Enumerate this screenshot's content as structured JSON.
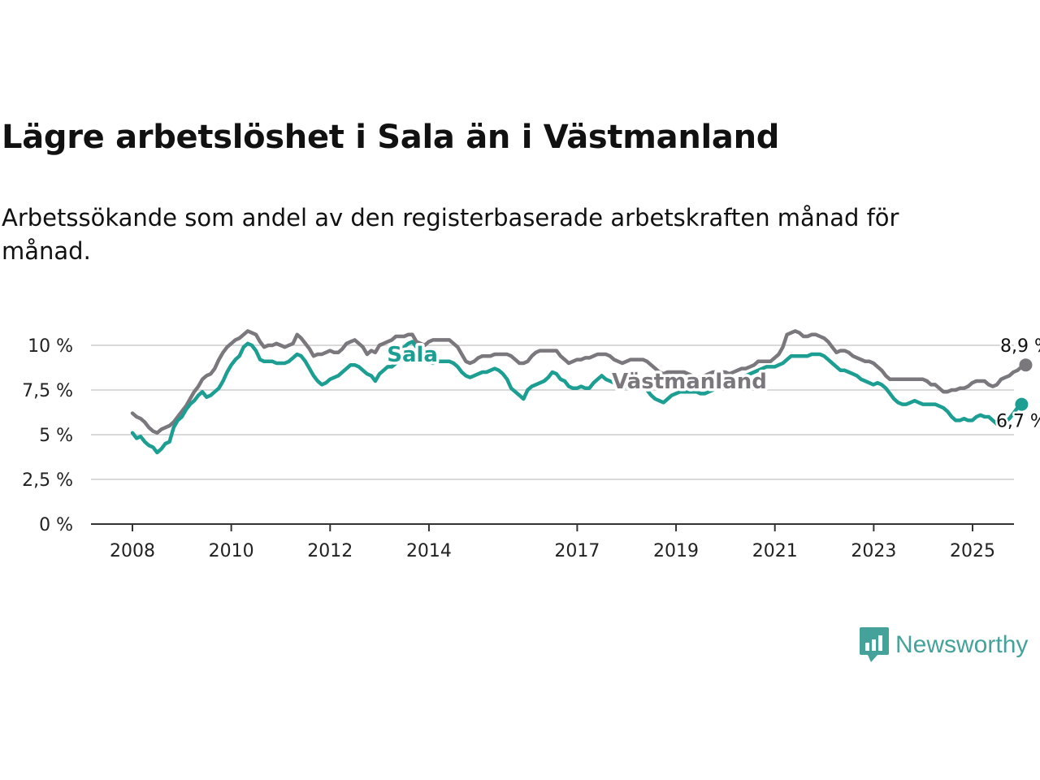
{
  "title": "Lägre arbetslöshet i Sala än i Västmanland",
  "subtitle": "Arbetssökande som andel av den registerbaserade arbetskraften månad för månad.",
  "brand": {
    "name": "Newsworthy",
    "color": "#45a29a"
  },
  "chart_data": {
    "type": "line",
    "x_start": 2008.0,
    "x_step": 0.0833,
    "xlim": [
      2008.0,
      2025.0
    ],
    "ylim": [
      0,
      10
    ],
    "x_ticks": [
      2008,
      2010,
      2012,
      2014,
      2017,
      2019,
      2021,
      2023,
      2025
    ],
    "x_tick_labels": [
      "2008",
      "2010",
      "2012",
      "2014",
      "2017",
      "2019",
      "2021",
      "2023",
      "2025"
    ],
    "y_ticks": [
      0,
      2.5,
      5,
      7.5,
      10
    ],
    "y_tick_labels": [
      "0 %",
      "2,5 %",
      "5 %",
      "7,5 %",
      "10 %"
    ],
    "grid": true,
    "series": [
      {
        "name": "Västmanland",
        "color": "#7a777d",
        "end_label": "8,9 %",
        "values": [
          6.2,
          6.0,
          5.9,
          5.7,
          5.4,
          5.2,
          5.1,
          5.3,
          5.4,
          5.5,
          5.7,
          6.0,
          6.3,
          6.6,
          7.0,
          7.4,
          7.7,
          8.1,
          8.3,
          8.4,
          8.7,
          9.2,
          9.6,
          9.9,
          10.1,
          10.3,
          10.4,
          10.6,
          10.8,
          10.7,
          10.6,
          10.2,
          9.9,
          10.0,
          10.0,
          10.1,
          10.0,
          9.9,
          10.0,
          10.1,
          10.6,
          10.4,
          10.1,
          9.8,
          9.4,
          9.5,
          9.5,
          9.6,
          9.7,
          9.6,
          9.6,
          9.8,
          10.1,
          10.2,
          10.3,
          10.1,
          9.9,
          9.5,
          9.7,
          9.6,
          10.0,
          10.1,
          10.2,
          10.3,
          10.5,
          10.5,
          10.5,
          10.6,
          10.6,
          10.2,
          10.1,
          10.0,
          10.2,
          10.3,
          10.3,
          10.3,
          10.3,
          10.3,
          10.1,
          9.9,
          9.5,
          9.1,
          9.0,
          9.1,
          9.3,
          9.4,
          9.4,
          9.4,
          9.5,
          9.5,
          9.5,
          9.5,
          9.4,
          9.2,
          9.0,
          9.0,
          9.1,
          9.4,
          9.6,
          9.7,
          9.7,
          9.7,
          9.7,
          9.7,
          9.4,
          9.2,
          9.0,
          9.1,
          9.2,
          9.2,
          9.3,
          9.3,
          9.4,
          9.5,
          9.5,
          9.5,
          9.4,
          9.2,
          9.1,
          9.0,
          9.1,
          9.2,
          9.2,
          9.2,
          9.2,
          9.1,
          8.9,
          8.7,
          8.5,
          8.4,
          8.5,
          8.5,
          8.5,
          8.5,
          8.5,
          8.4,
          8.3,
          8.2,
          8.2,
          8.3,
          8.4,
          8.5,
          8.5,
          8.5,
          8.5,
          8.4,
          8.5,
          8.6,
          8.7,
          8.7,
          8.8,
          8.9,
          9.1,
          9.1,
          9.1,
          9.1,
          9.3,
          9.5,
          9.9,
          10.6,
          10.7,
          10.8,
          10.7,
          10.5,
          10.5,
          10.6,
          10.6,
          10.5,
          10.4,
          10.2,
          9.9,
          9.6,
          9.7,
          9.7,
          9.6,
          9.4,
          9.3,
          9.2,
          9.1,
          9.1,
          9.0,
          8.8,
          8.6,
          8.3,
          8.1,
          8.1,
          8.1,
          8.1,
          8.1,
          8.1,
          8.1,
          8.1,
          8.1,
          8.0,
          7.8,
          7.8,
          7.6,
          7.4,
          7.4,
          7.5,
          7.5,
          7.6,
          7.6,
          7.7,
          7.9,
          8.0,
          8.0,
          8.0,
          7.8,
          7.7,
          7.8,
          8.1,
          8.2,
          8.3,
          8.5,
          8.6,
          8.8,
          8.9
        ]
      },
      {
        "name": "Sala",
        "color": "#1d9e93",
        "end_label": "6,7 %",
        "values": [
          5.1,
          4.8,
          4.9,
          4.6,
          4.4,
          4.3,
          4.0,
          4.2,
          4.5,
          4.6,
          5.4,
          5.8,
          6.0,
          6.4,
          6.7,
          6.9,
          7.2,
          7.4,
          7.1,
          7.2,
          7.4,
          7.6,
          8.0,
          8.5,
          8.9,
          9.2,
          9.4,
          9.9,
          10.1,
          10.0,
          9.7,
          9.2,
          9.1,
          9.1,
          9.1,
          9.0,
          9.0,
          9.0,
          9.1,
          9.3,
          9.5,
          9.4,
          9.1,
          8.7,
          8.3,
          8.0,
          7.8,
          7.9,
          8.1,
          8.2,
          8.3,
          8.5,
          8.7,
          8.9,
          8.9,
          8.8,
          8.6,
          8.4,
          8.3,
          8.0,
          8.4,
          8.6,
          8.8,
          8.8,
          9.0,
          9.5,
          9.9,
          10.1,
          10.2,
          9.9,
          9.5,
          9.2,
          9.1,
          9.0,
          9.1,
          9.1,
          9.1,
          9.1,
          9.0,
          8.8,
          8.5,
          8.3,
          8.2,
          8.3,
          8.4,
          8.5,
          8.5,
          8.6,
          8.7,
          8.6,
          8.4,
          8.1,
          7.6,
          7.4,
          7.2,
          7.0,
          7.5,
          7.7,
          7.8,
          7.9,
          8.0,
          8.2,
          8.5,
          8.4,
          8.1,
          8.0,
          7.7,
          7.6,
          7.6,
          7.7,
          7.6,
          7.6,
          7.9,
          8.1,
          8.3,
          8.1,
          8.0,
          7.9,
          7.7,
          7.6,
          7.7,
          7.8,
          7.8,
          7.8,
          7.7,
          7.5,
          7.2,
          7.0,
          6.9,
          6.8,
          7.0,
          7.2,
          7.3,
          7.4,
          7.4,
          7.4,
          7.4,
          7.4,
          7.3,
          7.3,
          7.4,
          7.5,
          7.7,
          7.8,
          7.9,
          8.0,
          8.0,
          8.1,
          8.2,
          8.3,
          8.4,
          8.5,
          8.6,
          8.7,
          8.8,
          8.8,
          8.8,
          8.9,
          9.0,
          9.2,
          9.4,
          9.4,
          9.4,
          9.4,
          9.4,
          9.5,
          9.5,
          9.5,
          9.4,
          9.2,
          9.0,
          8.8,
          8.6,
          8.6,
          8.5,
          8.4,
          8.3,
          8.1,
          8.0,
          7.9,
          7.8,
          7.9,
          7.8,
          7.6,
          7.3,
          7.0,
          6.8,
          6.7,
          6.7,
          6.8,
          6.9,
          6.8,
          6.7,
          6.7,
          6.7,
          6.7,
          6.6,
          6.5,
          6.3,
          6.0,
          5.8,
          5.8,
          5.9,
          5.8,
          5.8,
          6.0,
          6.1,
          6.0,
          6.0,
          5.8,
          5.6,
          5.5,
          5.7,
          5.9,
          6.2,
          6.5,
          6.7
        ]
      }
    ],
    "annotations": [
      {
        "text": "Sala",
        "series": "Sala"
      },
      {
        "text": "Västmanland",
        "series": "Västmanland"
      }
    ]
  }
}
